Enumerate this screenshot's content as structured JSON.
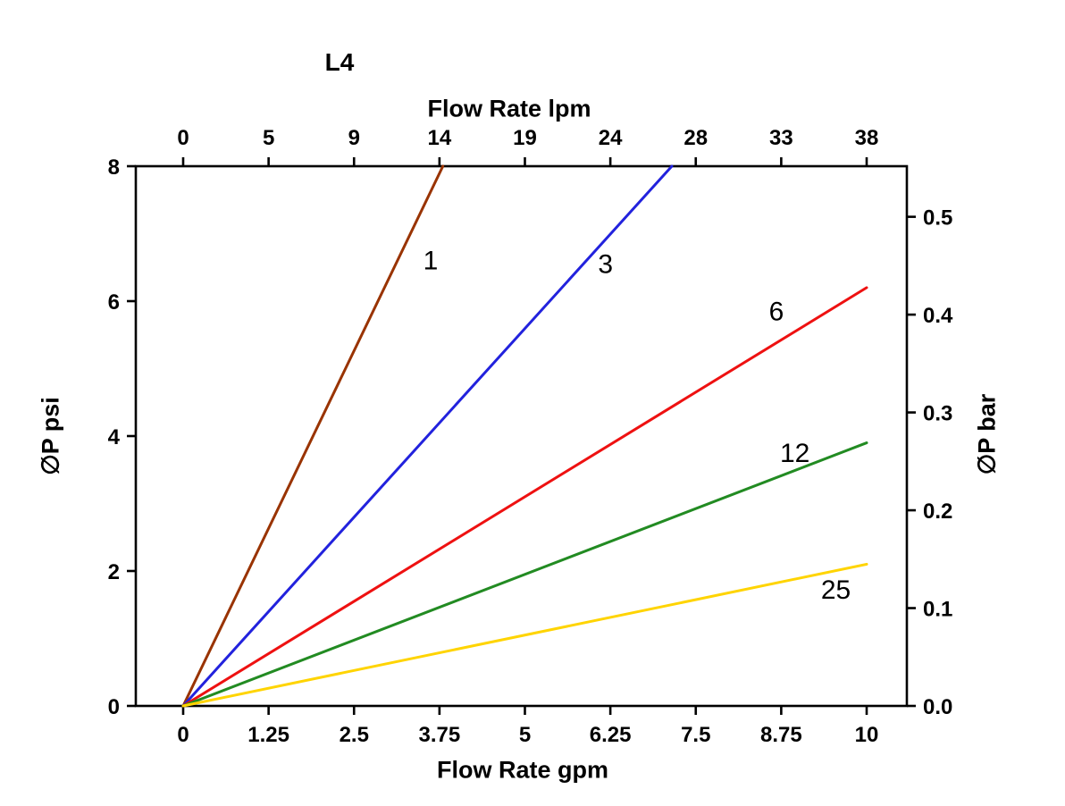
{
  "chart_data": {
    "type": "line",
    "title": "L4",
    "axes": {
      "top": {
        "label": "Flow Rate lpm",
        "tick_labels": [
          "0",
          "5",
          "9",
          "14",
          "19",
          "24",
          "28",
          "33",
          "38"
        ],
        "aligned_with_bottom_ticks": true
      },
      "bottom": {
        "label": "Flow Rate gpm",
        "tick_labels": [
          "0",
          "1.25",
          "2.5",
          "3.75",
          "5",
          "6.25",
          "7.5",
          "8.75",
          "10"
        ],
        "xlim_gpm": [
          0,
          10
        ]
      },
      "left": {
        "label": "∅P psi",
        "tick_labels": [
          "0",
          "2",
          "4",
          "6",
          "8"
        ],
        "ylim_psi": [
          0,
          8
        ]
      },
      "right": {
        "label": "∅P bar",
        "tick_labels": [
          "0.0",
          "0.1",
          "0.2",
          "0.3",
          "0.4",
          "0.5"
        ],
        "psi_per_bar": 14.5
      }
    },
    "grid": false,
    "legend": "inline-labels-on-lines",
    "series": [
      {
        "name": "1",
        "color": "#993300",
        "points_gpm_psi": [
          [
            0,
            0
          ],
          [
            3.8,
            8.0
          ]
        ],
        "label_at_gpm_psi": [
          3.62,
          6.6
        ]
      },
      {
        "name": "3",
        "color": "#2222dd",
        "points_gpm_psi": [
          [
            0,
            0
          ],
          [
            7.15,
            8.0
          ]
        ],
        "label_at_gpm_psi": [
          6.18,
          6.55
        ]
      },
      {
        "name": "6",
        "color": "#ee1111",
        "points_gpm_psi": [
          [
            0,
            0
          ],
          [
            10.0,
            6.2
          ]
        ],
        "label_at_gpm_psi": [
          8.68,
          5.85
        ]
      },
      {
        "name": "12",
        "color": "#228b22",
        "points_gpm_psi": [
          [
            0,
            0
          ],
          [
            10.0,
            3.9
          ]
        ],
        "label_at_gpm_psi": [
          8.95,
          3.75
        ]
      },
      {
        "name": "25",
        "color": "#ffd400",
        "points_gpm_psi": [
          [
            0,
            0
          ],
          [
            10.0,
            2.1
          ]
        ],
        "label_at_gpm_psi": [
          9.55,
          1.72
        ]
      }
    ]
  }
}
